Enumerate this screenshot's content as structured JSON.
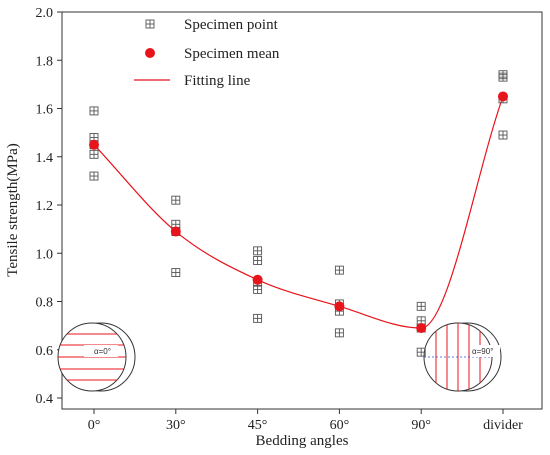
{
  "chart_data": {
    "type": "scatter",
    "categories": [
      "0°",
      "30°",
      "45°",
      "60°",
      "90°",
      "divider"
    ],
    "xlabel": "Bedding angles",
    "ylabel": "Tensile strength(MPa)",
    "ylim": [
      0.4,
      2.0
    ],
    "yticks": [
      "0.4",
      "0.6",
      "0.8",
      "1.0",
      "1.2",
      "1.4",
      "1.6",
      "1.8",
      "2.0"
    ],
    "grid": false,
    "legend_position": "top-left",
    "series": [
      {
        "name": "Specimen point",
        "marker": "square-cross",
        "color": "#555555",
        "points": [
          {
            "category": "0°",
            "values": [
              1.59,
              1.48,
              1.45,
              1.41,
              1.32
            ]
          },
          {
            "category": "30°",
            "values": [
              1.22,
              1.12,
              1.09,
              0.92
            ]
          },
          {
            "category": "45°",
            "values": [
              1.01,
              0.97,
              0.88,
              0.85,
              0.73
            ]
          },
          {
            "category": "60°",
            "values": [
              0.93,
              0.79,
              0.76,
              0.67
            ]
          },
          {
            "category": "90°",
            "values": [
              0.78,
              0.72,
              0.69,
              0.59
            ]
          },
          {
            "category": "divider",
            "values": [
              1.74,
              1.73,
              1.64,
              1.49
            ]
          }
        ]
      },
      {
        "name": "Specimen mean",
        "marker": "circle",
        "color": "#e8141b",
        "values": [
          1.45,
          1.09,
          0.89,
          0.78,
          0.69,
          1.65
        ]
      },
      {
        "name": "Fitting line",
        "marker": "line",
        "color": "#e8141b",
        "smooth": true,
        "values": [
          1.45,
          1.09,
          0.89,
          0.78,
          0.69,
          1.65
        ]
      }
    ],
    "insets": [
      {
        "label": "α=0°",
        "position": "bottom-left",
        "stripes": "horizontal"
      },
      {
        "label": "α=90°",
        "position": "bottom-right",
        "stripes": "vertical"
      }
    ]
  }
}
